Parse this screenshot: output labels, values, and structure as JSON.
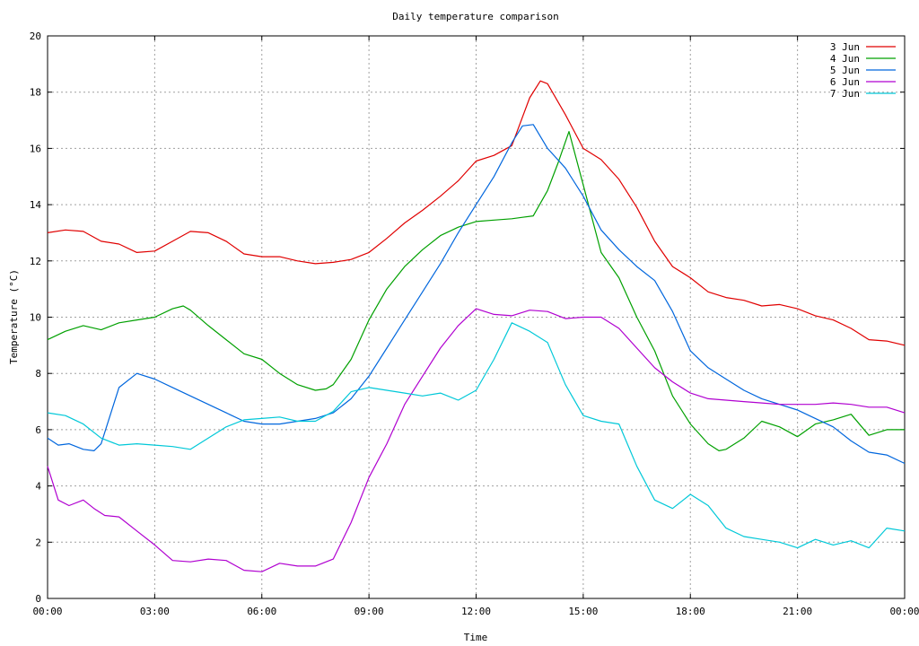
{
  "chart_data": {
    "type": "line",
    "title": "Daily temperature comparison",
    "xlabel": "Time",
    "ylabel": "Temperature (°C)",
    "xlim": [
      0,
      24
    ],
    "ylim": [
      0,
      20
    ],
    "grid": true,
    "legend_placement": "top-right",
    "x_tick_values": [
      0,
      3,
      6,
      9,
      12,
      15,
      18,
      21,
      24
    ],
    "x_tick_labels": [
      "00:00",
      "03:00",
      "06:00",
      "09:00",
      "12:00",
      "15:00",
      "18:00",
      "21:00",
      "00:00"
    ],
    "y_tick_values": [
      0,
      2,
      4,
      6,
      8,
      10,
      12,
      14,
      16,
      18,
      20
    ],
    "y_tick_labels": [
      "0",
      "2",
      "4",
      "6",
      "8",
      "10",
      "12",
      "14",
      "16",
      "18",
      "20"
    ],
    "series": [
      {
        "name": "3 Jun",
        "color": "#e00000",
        "x": [
          0,
          0.5,
          1,
          1.5,
          2,
          2.5,
          3,
          3.5,
          4,
          4.5,
          5,
          5.5,
          6,
          6.5,
          7,
          7.5,
          8,
          8.5,
          9,
          9.5,
          10,
          10.5,
          11,
          11.5,
          12,
          12.5,
          13,
          13.5,
          13.8,
          14,
          14.5,
          15,
          15.5,
          16,
          16.5,
          17,
          17.5,
          18,
          18.5,
          19,
          19.5,
          20,
          20.5,
          21,
          21.5,
          22,
          22.5,
          23,
          23.5,
          24
        ],
        "y": [
          13.0,
          13.1,
          13.05,
          12.7,
          12.6,
          12.3,
          12.35,
          12.7,
          13.05,
          13.0,
          12.7,
          12.25,
          12.15,
          12.15,
          12.0,
          11.9,
          11.95,
          12.05,
          12.3,
          12.8,
          13.35,
          13.8,
          14.3,
          14.85,
          15.55,
          15.75,
          16.1,
          17.8,
          18.4,
          18.3,
          17.2,
          16.0,
          15.6,
          14.9,
          13.9,
          12.7,
          11.8,
          11.4,
          10.9,
          10.7,
          10.6,
          10.4,
          10.45,
          10.3,
          10.05,
          9.9,
          9.6,
          9.2,
          9.15,
          9.0
        ]
      },
      {
        "name": "4 Jun",
        "color": "#00a000",
        "x": [
          0,
          0.5,
          1,
          1.5,
          2,
          2.5,
          3,
          3.5,
          3.8,
          4,
          4.5,
          5,
          5.5,
          6,
          6.5,
          7,
          7.5,
          7.8,
          8,
          8.5,
          9,
          9.5,
          10,
          10.5,
          11,
          11.5,
          12,
          12.5,
          13,
          13.3,
          13.6,
          14,
          14.3,
          14.6,
          15,
          15.5,
          16,
          16.5,
          17,
          17.5,
          18,
          18.5,
          18.8,
          19,
          19.5,
          20,
          20.5,
          21,
          21.5,
          22,
          22.5,
          23,
          23.5,
          24
        ],
        "y": [
          9.2,
          9.5,
          9.7,
          9.55,
          9.8,
          9.9,
          10.0,
          10.3,
          10.4,
          10.25,
          9.7,
          9.2,
          8.7,
          8.5,
          8.0,
          7.6,
          7.4,
          7.45,
          7.6,
          8.5,
          9.9,
          11.0,
          11.8,
          12.4,
          12.9,
          13.2,
          13.4,
          13.45,
          13.5,
          13.55,
          13.6,
          14.5,
          15.5,
          16.6,
          14.7,
          12.3,
          11.4,
          10.0,
          8.8,
          7.2,
          6.2,
          5.5,
          5.25,
          5.3,
          5.7,
          6.3,
          6.1,
          5.75,
          6.2,
          6.35,
          6.55,
          5.8,
          6.0,
          6.0
        ]
      },
      {
        "name": "5 Jun",
        "color": "#0066dd",
        "x": [
          0,
          0.3,
          0.6,
          1,
          1.3,
          1.5,
          2,
          2.5,
          3,
          3.5,
          4,
          4.5,
          5,
          5.5,
          6,
          6.5,
          7,
          7.5,
          8,
          8.5,
          9,
          9.5,
          10,
          10.5,
          11,
          11.5,
          12,
          12.5,
          13,
          13.3,
          13.6,
          14,
          14.5,
          15,
          15.5,
          16,
          16.5,
          17,
          17.5,
          18,
          18.5,
          19,
          19.5,
          20,
          20.5,
          21,
          21.5,
          22,
          22.5,
          23,
          23.5,
          24
        ],
        "y": [
          5.7,
          5.45,
          5.5,
          5.3,
          5.25,
          5.5,
          7.5,
          8.0,
          7.8,
          7.5,
          7.2,
          6.9,
          6.6,
          6.3,
          6.2,
          6.2,
          6.3,
          6.4,
          6.6,
          7.1,
          7.9,
          8.9,
          9.9,
          10.9,
          11.9,
          13.0,
          14.0,
          15.0,
          16.2,
          16.8,
          16.85,
          16.0,
          15.3,
          14.3,
          13.1,
          12.4,
          11.8,
          11.3,
          10.2,
          8.8,
          8.2,
          7.8,
          7.4,
          7.1,
          6.9,
          6.7,
          6.4,
          6.1,
          5.6,
          5.2,
          5.1,
          4.8
        ]
      },
      {
        "name": "6 Jun",
        "color": "#b000d0",
        "x": [
          0,
          0.3,
          0.6,
          1,
          1.3,
          1.6,
          2,
          2.5,
          3,
          3.5,
          4,
          4.5,
          5,
          5.5,
          6,
          6.5,
          7,
          7.5,
          8,
          8.5,
          9,
          9.5,
          10,
          10.5,
          11,
          11.5,
          12,
          12.5,
          13,
          13.5,
          14,
          14.5,
          15,
          15.5,
          16,
          16.5,
          17,
          17.5,
          18,
          18.5,
          19,
          19.5,
          20,
          20.5,
          21,
          21.5,
          22,
          22.5,
          23,
          23.5,
          24
        ],
        "y": [
          4.7,
          3.5,
          3.3,
          3.5,
          3.2,
          2.95,
          2.9,
          2.4,
          1.9,
          1.35,
          1.3,
          1.4,
          1.35,
          1.0,
          0.95,
          1.25,
          1.15,
          1.15,
          1.4,
          2.7,
          4.3,
          5.5,
          6.9,
          7.9,
          8.9,
          9.7,
          10.3,
          10.1,
          10.05,
          10.25,
          10.2,
          9.95,
          10.0,
          10.0,
          9.6,
          8.9,
          8.2,
          7.7,
          7.3,
          7.1,
          7.05,
          7.0,
          6.95,
          6.9,
          6.9,
          6.9,
          6.95,
          6.9,
          6.8,
          6.8,
          6.6
        ]
      },
      {
        "name": "7 Jun",
        "color": "#00c8d8",
        "x": [
          0,
          0.5,
          1,
          1.5,
          2,
          2.5,
          3,
          3.5,
          4,
          4.5,
          5,
          5.5,
          6,
          6.5,
          7,
          7.5,
          8,
          8.5,
          9,
          9.5,
          10,
          10.5,
          11,
          11.5,
          12,
          12.5,
          13,
          13.5,
          14,
          14.5,
          15,
          15.5,
          16,
          16.5,
          17,
          17.5,
          18,
          18.5,
          19,
          19.5,
          20,
          20.5,
          21,
          21.5,
          22,
          22.5,
          23,
          23.5,
          24
        ],
        "y": [
          6.6,
          6.5,
          6.2,
          5.7,
          5.45,
          5.5,
          5.45,
          5.4,
          5.3,
          5.7,
          6.1,
          6.35,
          6.4,
          6.45,
          6.3,
          6.3,
          6.65,
          7.35,
          7.5,
          7.4,
          7.3,
          7.2,
          7.3,
          7.05,
          7.4,
          8.5,
          9.8,
          9.5,
          9.1,
          7.6,
          6.5,
          6.3,
          6.2,
          4.7,
          3.5,
          3.2,
          3.7,
          3.3,
          2.5,
          2.2,
          2.1,
          2.0,
          1.8,
          2.1,
          1.9,
          2.05,
          1.8,
          2.5,
          2.4
        ]
      }
    ]
  }
}
